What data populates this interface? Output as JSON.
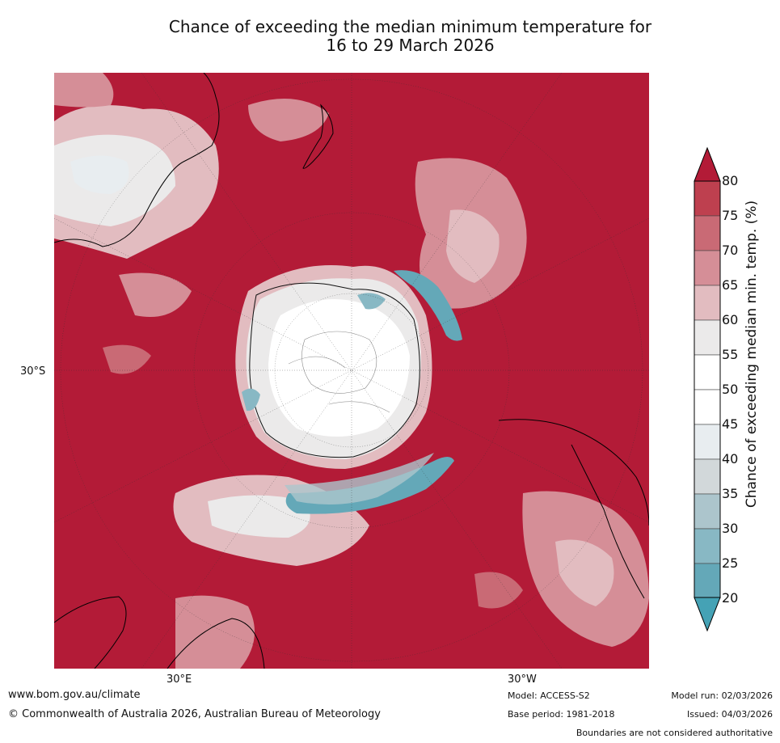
{
  "title_line1": "Chance of exceeding the median minimum temperature for",
  "title_line2": "16 to 29 March 2026",
  "map": {
    "lat_label": "30°S",
    "lon_labels": [
      "30°E",
      "30°W"
    ],
    "projection": "south polar stereographic",
    "background_color": "#b31b37"
  },
  "colorbar": {
    "label": "Chance of exceeding median min. temp. (%)",
    "ticks": [
      "80",
      "75",
      "70",
      "65",
      "60",
      "55",
      "50",
      "45",
      "40",
      "35",
      "30",
      "25",
      "20"
    ],
    "colors": [
      "#be404f",
      "#c96a75",
      "#d58e97",
      "#e2bcc0",
      "#ebeaea",
      "#ffffff",
      "#ffffff",
      "#e8edf0",
      "#d2d8da",
      "#acc5cc",
      "#88b8c4",
      "#64a8b8"
    ],
    "extend_top_color": "#b31b37",
    "extend_bottom_color": "#45a2b5"
  },
  "footer": {
    "website": "www.bom.gov.au/climate",
    "copyright": "© Commonwealth of Australia 2026, Australian Bureau of Meteorology",
    "model": "Model: ACCESS-S2",
    "base_period": "Base period: 1981-2018",
    "model_run": "Model run: 02/03/2026",
    "issued": "Issued: 04/03/2026",
    "disclaimer": "Boundaries are not considered authoritative"
  }
}
